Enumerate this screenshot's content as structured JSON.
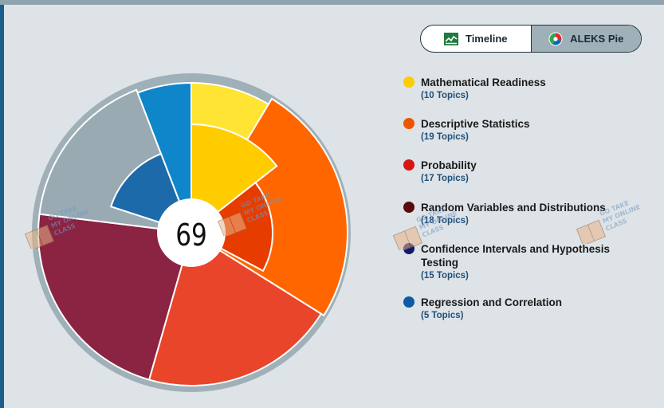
{
  "view_toggle": {
    "timeline_label": "Timeline",
    "pie_label": "ALEKS Pie",
    "active": "ALEKS Pie"
  },
  "pie": {
    "center_value": "69",
    "colors": {
      "mathematical_readiness": {
        "outer": "#ffe433",
        "inner": "#ffcc00"
      },
      "descriptive_statistics": {
        "outer": "#ff6600",
        "inner": "#e63c00"
      },
      "probability": {
        "outer": "#e8452a"
      },
      "random_variables": {
        "outer": "#8b2342"
      },
      "confidence_intervals": {
        "outer": "#99aab2"
      },
      "regression": {
        "outer": "#0e86c9",
        "inner": "#1d6aab"
      }
    }
  },
  "legend": [
    {
      "name": "Mathematical Readiness",
      "count": "(10 Topics)",
      "color": "#ffcc00"
    },
    {
      "name": "Descriptive Statistics",
      "count": "(19 Topics)",
      "color": "#ee5500"
    },
    {
      "name": "Probability",
      "count": "(17 Topics)",
      "color": "#d61515"
    },
    {
      "name": "Random Variables and Distributions",
      "count": "(18 Topics)",
      "color": "#5a0a0a"
    },
    {
      "name": "Confidence Intervals and Hypothesis Testing",
      "count": "(15 Topics)",
      "color": "#101a6a"
    },
    {
      "name": "Regression and Correlation",
      "count": "(5 Topics)",
      "color": "#0d5aa7"
    }
  ],
  "watermark": {
    "lines": [
      "GO TAKE",
      "MY ONLINE",
      "CLASS"
    ]
  }
}
